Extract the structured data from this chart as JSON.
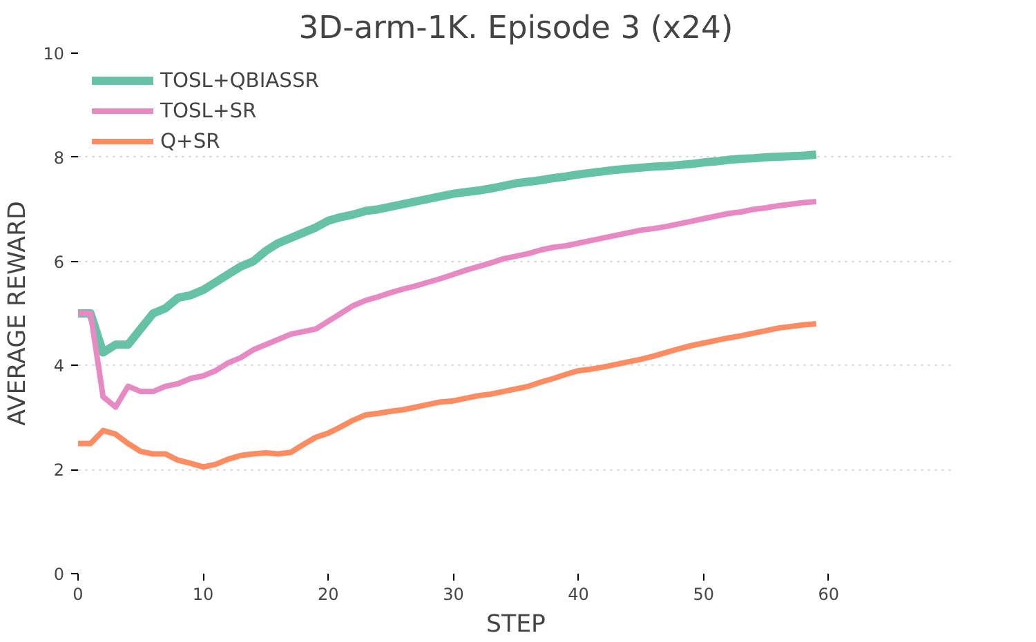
{
  "chart_data": {
    "type": "line",
    "title": "3D-arm-1K. Episode 3 (x24)",
    "xlabel": "STEP",
    "ylabel": "AVERAGE REWARD",
    "x": [
      0,
      1,
      2,
      3,
      4,
      5,
      6,
      7,
      8,
      9,
      10,
      11,
      12,
      13,
      14,
      15,
      16,
      17,
      18,
      19,
      20,
      21,
      22,
      23,
      24,
      25,
      26,
      27,
      28,
      29,
      30,
      31,
      32,
      33,
      34,
      35,
      36,
      37,
      38,
      39,
      40,
      41,
      42,
      43,
      44,
      45,
      46,
      47,
      48,
      49,
      50,
      51,
      52,
      53,
      54,
      55,
      56,
      57,
      58,
      59
    ],
    "series": [
      {
        "name": "TOSL+QBIASSR",
        "color": "#66c2a5",
        "values": [
          5.0,
          5.0,
          4.25,
          4.4,
          4.4,
          4.7,
          5.0,
          5.1,
          5.3,
          5.35,
          5.45,
          5.6,
          5.75,
          5.9,
          6.0,
          6.2,
          6.35,
          6.45,
          6.55,
          6.65,
          6.78,
          6.85,
          6.9,
          6.97,
          7.0,
          7.05,
          7.1,
          7.15,
          7.2,
          7.25,
          7.3,
          7.33,
          7.36,
          7.4,
          7.45,
          7.5,
          7.53,
          7.56,
          7.6,
          7.63,
          7.67,
          7.7,
          7.73,
          7.76,
          7.78,
          7.8,
          7.82,
          7.83,
          7.85,
          7.87,
          7.9,
          7.92,
          7.95,
          7.97,
          7.98,
          8.0,
          8.01,
          8.02,
          8.03,
          8.05
        ]
      },
      {
        "name": "TOSL+SR",
        "color": "#e78ac3",
        "values": [
          5.0,
          5.0,
          3.4,
          3.2,
          3.6,
          3.5,
          3.5,
          3.6,
          3.65,
          3.75,
          3.8,
          3.9,
          4.05,
          4.15,
          4.3,
          4.4,
          4.5,
          4.6,
          4.65,
          4.7,
          4.85,
          5.0,
          5.15,
          5.25,
          5.32,
          5.4,
          5.47,
          5.53,
          5.6,
          5.67,
          5.75,
          5.83,
          5.9,
          5.97,
          6.05,
          6.1,
          6.15,
          6.22,
          6.27,
          6.3,
          6.35,
          6.4,
          6.45,
          6.5,
          6.55,
          6.6,
          6.63,
          6.67,
          6.72,
          6.77,
          6.82,
          6.87,
          6.92,
          6.95,
          7.0,
          7.03,
          7.07,
          7.1,
          7.13,
          7.15
        ]
      },
      {
        "name": "Q+SR",
        "color": "#fc8d62",
        "values": [
          2.5,
          2.5,
          2.75,
          2.68,
          2.5,
          2.35,
          2.3,
          2.3,
          2.18,
          2.12,
          2.05,
          2.1,
          2.2,
          2.27,
          2.3,
          2.32,
          2.3,
          2.33,
          2.48,
          2.62,
          2.7,
          2.82,
          2.95,
          3.05,
          3.08,
          3.12,
          3.15,
          3.2,
          3.25,
          3.3,
          3.32,
          3.37,
          3.42,
          3.45,
          3.5,
          3.55,
          3.6,
          3.68,
          3.75,
          3.83,
          3.9,
          3.93,
          3.97,
          4.02,
          4.07,
          4.12,
          4.18,
          4.25,
          4.32,
          4.38,
          4.43,
          4.48,
          4.53,
          4.57,
          4.62,
          4.67,
          4.72,
          4.75,
          4.78,
          4.8
        ]
      }
    ],
    "xlim": [
      0,
      70
    ],
    "ylim": [
      0,
      10
    ],
    "xticks": [
      0,
      10,
      20,
      30,
      40,
      50,
      60
    ],
    "yticks": [
      0,
      2,
      4,
      6,
      8,
      10
    ],
    "grid": "y",
    "legend": "top left",
    "line_style": "solid",
    "marker": "none"
  }
}
